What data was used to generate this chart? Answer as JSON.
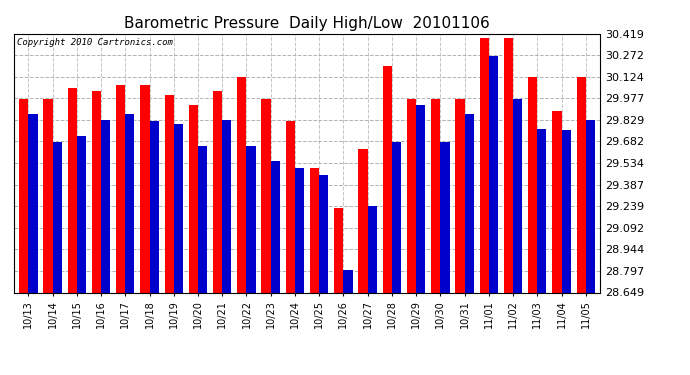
{
  "title": "Barometric Pressure  Daily High/Low  20101106",
  "copyright_text": "Copyright 2010 Cartronics.com",
  "dates": [
    "10/13",
    "10/14",
    "10/15",
    "10/16",
    "10/17",
    "10/18",
    "10/19",
    "10/20",
    "10/21",
    "10/22",
    "10/23",
    "10/24",
    "10/25",
    "10/26",
    "10/27",
    "10/28",
    "10/29",
    "10/30",
    "10/31",
    "11/01",
    "11/02",
    "11/03",
    "11/04",
    "11/05"
  ],
  "highs": [
    29.97,
    29.97,
    30.05,
    30.03,
    30.07,
    30.07,
    30.0,
    29.93,
    30.03,
    30.12,
    29.97,
    29.82,
    29.5,
    29.23,
    29.63,
    30.2,
    29.97,
    29.97,
    29.97,
    30.39,
    30.39,
    30.12,
    29.89,
    30.12
  ],
  "lows": [
    29.87,
    29.68,
    29.72,
    29.83,
    29.87,
    29.82,
    29.8,
    29.65,
    29.83,
    29.65,
    29.55,
    29.5,
    29.45,
    28.8,
    29.24,
    29.68,
    29.93,
    29.68,
    29.87,
    30.27,
    29.97,
    29.77,
    29.76,
    29.83
  ],
  "high_color": "#ff0000",
  "low_color": "#0000cc",
  "bg_color": "#ffffff",
  "grid_color": "#aaaaaa",
  "ylim_min": 28.649,
  "ylim_max": 30.419,
  "yticks": [
    28.649,
    28.797,
    28.944,
    29.092,
    29.239,
    29.387,
    29.534,
    29.682,
    29.829,
    29.977,
    30.124,
    30.272,
    30.419
  ],
  "title_fontsize": 11,
  "bar_width": 0.38
}
